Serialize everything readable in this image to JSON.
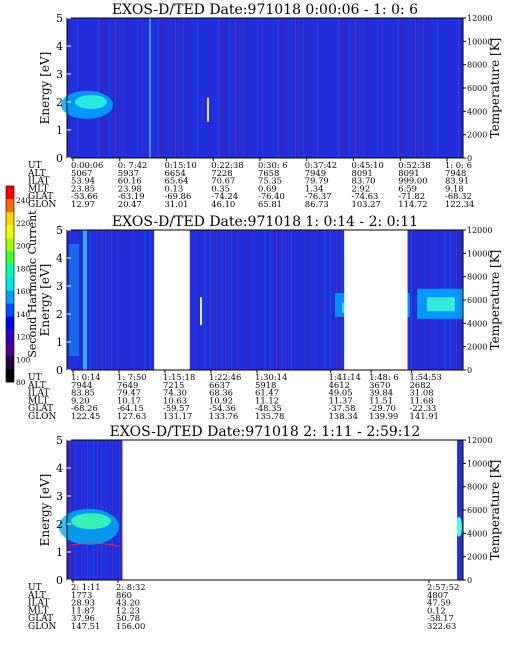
{
  "colorbar": {
    "label": "Second Harmonic Current",
    "ticks": [
      "240",
      "220",
      "200",
      "180",
      "160",
      "140",
      "120",
      "100",
      "80"
    ],
    "colors": [
      "#ff0000",
      "#ff6a00",
      "#ffd800",
      "#f0ff00",
      "#9dff00",
      "#3cff30",
      "#00ffb0",
      "#00e8e8",
      "#00a0ff",
      "#0050ff",
      "#0000ff",
      "#3000c0",
      "#50008a",
      "#2a0040",
      "#000000"
    ]
  },
  "chart_data": [
    {
      "type": "heatmap",
      "title": "EXOS-D/TED   Date:971018   0:00:06 - 1: 0: 6",
      "ylabel": "Energy [eV]",
      "y2label": "Temperature [K]",
      "ylim": [
        0,
        5
      ],
      "y2lim": [
        0,
        12000
      ],
      "yticks": [
        "0",
        "1",
        "2",
        "3",
        "4",
        "5"
      ],
      "y2ticks": [
        "0",
        "2000",
        "4000",
        "6000",
        "8000",
        "10000",
        "12000"
      ],
      "data_gaps": [],
      "ephemeris": {
        "rows": [
          {
            "label": "UT",
            "values": [
              "0:00:06",
              "0: 7:42",
              "0:15:10",
              "0:22:38",
              "0:30: 6",
              "0:37:42",
              "0:45:10",
              "0:52:38",
              "1: 0: 6"
            ]
          },
          {
            "label": "ALT",
            "values": [
              "5067",
              "5937",
              "6654",
              "7228",
              "7658",
              "7949",
              "8091",
              "8091",
              "7948"
            ]
          },
          {
            "label": "ILAT",
            "values": [
              "53.94",
              "60.16",
              "65.64",
              "70.67",
              "75.35",
              "79.79",
              "83.70",
              "999.00",
              "83.91"
            ]
          },
          {
            "label": "MLT",
            "values": [
              "23.85",
              "23.98",
              "0.13",
              "0.35",
              "0.69",
              "1.34",
              "2.92",
              "6.59",
              "9.18"
            ]
          },
          {
            "label": "GLAT",
            "values": [
              "-53.66",
              "-63.19",
              "-69.86",
              "-74.24",
              "-76.40",
              "-76.37",
              "-74.63",
              "-71.82",
              "-68.32"
            ]
          },
          {
            "label": "GLON",
            "values": [
              "12.97",
              "20.47",
              "31.01",
              "46.10",
              "65.81",
              "86.73",
              "103.27",
              "114.72",
              "122.34"
            ]
          }
        ]
      }
    },
    {
      "type": "heatmap",
      "title": "EXOS-D/TED   Date:971018   1: 0:14 - 2: 0:11",
      "ylabel": "Energy [eV]",
      "y2label": "Temperature [K]",
      "ylim": [
        0,
        5
      ],
      "y2lim": [
        0,
        12000
      ],
      "yticks": [
        "0",
        "1",
        "2",
        "3",
        "4",
        "5"
      ],
      "y2ticks": [
        "0",
        "2000",
        "4000",
        "6000",
        "8000",
        "10000",
        "12000"
      ],
      "data_gaps": [
        [
          0.22,
          0.31
        ],
        [
          0.7,
          0.86
        ]
      ],
      "ephemeris": {
        "rows": [
          {
            "label": "UT",
            "values": [
              "1: 0:14",
              "1: 7:50",
              "1:15:18",
              "1:22:46",
              "1:30:14",
              "1:41:14",
              "1:48: 6",
              "1:54:53"
            ]
          },
          {
            "label": "ALT",
            "values": [
              "7944",
              "7649",
              "7215",
              "6637",
              "5918",
              "4612",
              "3670",
              "2682"
            ]
          },
          {
            "label": "ILAT",
            "values": [
              "83.85",
              "79.47",
              "74.30",
              "68.36",
              "61.47",
              "49.05",
              "39.84",
              "31.08"
            ]
          },
          {
            "label": "MLT",
            "values": [
              "9.20",
              "10.17",
              "10.63",
              "10.92",
              "11.12",
              "11.37",
              "11.51",
              "11.68"
            ]
          },
          {
            "label": "GLAT",
            "values": [
              "-68.26",
              "-64.15",
              "-59.57",
              "-54.36",
              "-48.35",
              "-37.58",
              "-29.70",
              "-22.33"
            ]
          },
          {
            "label": "GLON",
            "values": [
              "122.45",
              "127.63",
              "131.17",
              "133.76",
              "135.78",
              "138.34",
              "139.99",
              "141.91"
            ]
          }
        ]
      }
    },
    {
      "type": "heatmap",
      "title": "EXOS-D/TED   Date:971018   2: 1:11 - 2:59:12",
      "ylabel": "Energy [eV]",
      "y2label": "Temperature [K]",
      "ylim": [
        0,
        5
      ],
      "y2lim": [
        0,
        12000
      ],
      "yticks": [
        "0",
        "1",
        "2",
        "3",
        "4",
        "5"
      ],
      "y2ticks": [
        "0",
        "2000",
        "4000",
        "6000",
        "8000",
        "10000",
        "12000"
      ],
      "data_gaps": [
        [
          0.14,
          0.985
        ]
      ],
      "ephemeris": {
        "rows": [
          {
            "label": "UT",
            "values": [
              "2: 1:11",
              "2: 8:32",
              "2:57:52"
            ]
          },
          {
            "label": "ALT",
            "values": [
              "1773",
              "860",
              "4807"
            ]
          },
          {
            "label": "ILAT",
            "values": [
              "28.93",
              "43.20",
              "47.59"
            ]
          },
          {
            "label": "MLT",
            "values": [
              "11.87",
              "12.23",
              "0.12"
            ]
          },
          {
            "label": "GLAT",
            "values": [
              "37.96",
              "50.78",
              "-58.17"
            ]
          },
          {
            "label": "GLON",
            "values": [
              "147.51",
              "156.00",
              "322.63"
            ]
          }
        ]
      }
    }
  ]
}
